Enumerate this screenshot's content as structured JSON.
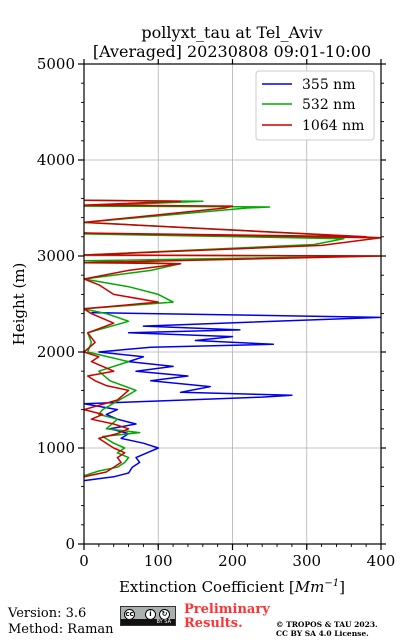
{
  "chart_data": {
    "type": "line",
    "title": "pollyxt_tau at Tel_Aviv",
    "subtitle": "[Averaged] 20230808 09:01-10:00",
    "xlabel": "Extinction Coefficient [",
    "xlabel_unit": "Mm",
    "xlabel_exp": "−1",
    "xlabel_end": "]",
    "ylabel": "Height (m)",
    "xlim": [
      0,
      400
    ],
    "ylim": [
      0,
      5000
    ],
    "xticks": [
      "0",
      "100",
      "200",
      "300",
      "400"
    ],
    "yticks": [
      "0",
      "1000",
      "2000",
      "3000",
      "4000",
      "5000"
    ],
    "grid": true,
    "legend_position": "top-right",
    "series": [
      {
        "name": "355 nm",
        "color": "#0000ee",
        "points": [
          [
            0,
            660
          ],
          [
            40,
            700
          ],
          [
            60,
            740
          ],
          [
            65,
            800
          ],
          [
            75,
            850
          ],
          [
            70,
            900
          ],
          [
            85,
            950
          ],
          [
            100,
            1000
          ],
          [
            80,
            1050
          ],
          [
            50,
            1100
          ],
          [
            60,
            1150
          ],
          [
            35,
            1200
          ],
          [
            70,
            1250
          ],
          [
            45,
            1300
          ],
          [
            30,
            1350
          ],
          [
            45,
            1400
          ],
          [
            0,
            1460
          ],
          [
            100,
            1490
          ],
          [
            240,
            1530
          ],
          [
            280,
            1550
          ],
          [
            130,
            1580
          ],
          [
            170,
            1640
          ],
          [
            90,
            1700
          ],
          [
            140,
            1750
          ],
          [
            70,
            1800
          ],
          [
            120,
            1850
          ],
          [
            60,
            1900
          ],
          [
            80,
            1950
          ],
          [
            20,
            2000
          ],
          [
            90,
            2050
          ],
          [
            255,
            2080
          ],
          [
            150,
            2120
          ],
          [
            200,
            2160
          ],
          [
            60,
            2200
          ],
          [
            210,
            2230
          ],
          [
            80,
            2270
          ],
          [
            400,
            2360
          ],
          [
            10,
            2410
          ]
        ]
      },
      {
        "name": "532 nm",
        "color": "#00aa00",
        "points": [
          [
            0,
            710
          ],
          [
            20,
            760
          ],
          [
            45,
            800
          ],
          [
            55,
            850
          ],
          [
            60,
            900
          ],
          [
            45,
            950
          ],
          [
            55,
            1000
          ],
          [
            40,
            1050
          ],
          [
            25,
            1120
          ],
          [
            75,
            1160
          ],
          [
            30,
            1200
          ],
          [
            45,
            1300
          ],
          [
            20,
            1350
          ],
          [
            25,
            1400
          ],
          [
            70,
            1600
          ],
          [
            35,
            1700
          ],
          [
            20,
            1800
          ],
          [
            60,
            1900
          ],
          [
            5,
            2000
          ],
          [
            10,
            2100
          ],
          [
            5,
            2200
          ],
          [
            60,
            2320
          ],
          [
            30,
            2400
          ],
          [
            0,
            2450
          ],
          [
            120,
            2520
          ],
          [
            100,
            2600
          ],
          [
            60,
            2680
          ],
          [
            0,
            2760
          ],
          [
            90,
            2850
          ],
          [
            130,
            2920
          ],
          [
            0,
            2950
          ],
          [
            400,
            3000
          ],
          [
            0,
            3010
          ],
          [
            310,
            3120
          ],
          [
            350,
            3180
          ],
          [
            0,
            3230
          ],
          [
            400,
            3190
          ],
          [
            0,
            3350
          ],
          [
            220,
            3500
          ],
          [
            250,
            3510
          ],
          [
            0,
            3520
          ],
          [
            160,
            3570
          ],
          [
            0,
            3580
          ]
        ]
      },
      {
        "name": "1064 nm",
        "color": "#cc0000",
        "points": [
          [
            0,
            700
          ],
          [
            30,
            750
          ],
          [
            40,
            800
          ],
          [
            50,
            850
          ],
          [
            45,
            900
          ],
          [
            55,
            950
          ],
          [
            40,
            1000
          ],
          [
            30,
            1050
          ],
          [
            20,
            1100
          ],
          [
            45,
            1150
          ],
          [
            60,
            1200
          ],
          [
            40,
            1250
          ],
          [
            10,
            1300
          ],
          [
            25,
            1350
          ],
          [
            0,
            1400
          ],
          [
            45,
            1500
          ],
          [
            60,
            1600
          ],
          [
            30,
            1650
          ],
          [
            15,
            1700
          ],
          [
            5,
            1750
          ],
          [
            40,
            1800
          ],
          [
            10,
            1900
          ],
          [
            20,
            1950
          ],
          [
            0,
            2000
          ],
          [
            15,
            2100
          ],
          [
            5,
            2200
          ],
          [
            40,
            2300
          ],
          [
            10,
            2400
          ],
          [
            0,
            2450
          ],
          [
            100,
            2520
          ],
          [
            40,
            2600
          ],
          [
            20,
            2700
          ],
          [
            0,
            2760
          ],
          [
            60,
            2850
          ],
          [
            130,
            2920
          ],
          [
            0,
            2930
          ],
          [
            400,
            3000
          ],
          [
            0,
            3010
          ],
          [
            320,
            3110
          ],
          [
            400,
            3190
          ],
          [
            0,
            3240
          ],
          [
            380,
            3200
          ],
          [
            0,
            3350
          ],
          [
            190,
            3500
          ],
          [
            200,
            3520
          ],
          [
            0,
            3530
          ],
          [
            130,
            3570
          ],
          [
            0,
            3580
          ]
        ]
      }
    ]
  },
  "footer": {
    "version": "Version: 3.6",
    "method": "Method: Raman",
    "preliminary_line1": "Preliminary",
    "preliminary_line2": "Results.",
    "copyright_line1": "© TROPOS & TAU 2023.",
    "copyright_line2": "CC BY SA 4.0 License."
  },
  "license_badge": {
    "icon": "cc-by-sa-icon",
    "strip_text": "BY  SA"
  }
}
